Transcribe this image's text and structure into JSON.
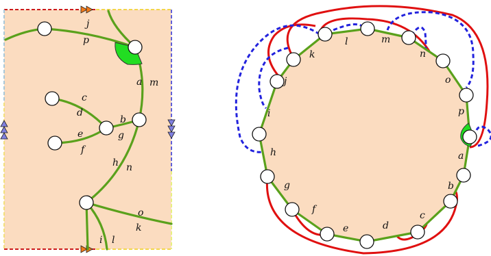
{
  "colors": {
    "face": "#fbdcc0",
    "edge": "#5aa11c",
    "red_curve": "#e01010",
    "blue_curve": "#2222dd",
    "marker": "#22dd22"
  },
  "left": {
    "labels": {
      "j": "j",
      "p": "p",
      "a": "a",
      "m": "m",
      "c": "c",
      "d": "d",
      "b": "b",
      "g": "g",
      "e": "e",
      "f": "f",
      "h": "h",
      "n": "n",
      "o": "o",
      "k": "k",
      "i": "i",
      "l": "l"
    }
  },
  "right": {
    "labels": [
      "k",
      "l",
      "m",
      "n",
      "o",
      "p",
      "a",
      "b",
      "c",
      "d",
      "e",
      "f",
      "g",
      "h",
      "i",
      "j"
    ]
  }
}
